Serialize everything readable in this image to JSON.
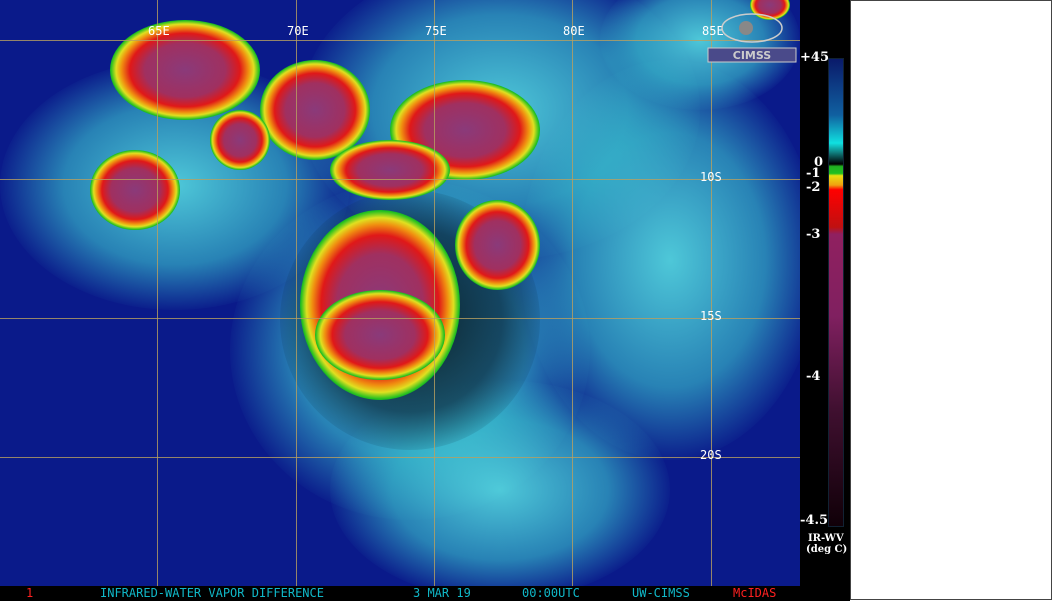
{
  "image": {
    "type": "satellite infrared-water vapor difference imagery",
    "subject": "tropical cyclone, South Indian Ocean"
  },
  "grid": {
    "longitude_labels": [
      "65E",
      "70E",
      "75E",
      "80E",
      "85E"
    ],
    "latitude_labels": [
      "10S",
      "15S",
      "20S"
    ]
  },
  "logo": {
    "text": "CIMSS"
  },
  "colorbar": {
    "labels": [
      "+45",
      "0",
      "-1",
      "-2",
      "-3",
      "-4",
      "-4.5"
    ],
    "unit_label_1": "IR-WV",
    "unit_label_2": "(deg C)"
  },
  "footer": {
    "frame": "1",
    "product": "INFRARED-WATER VAPOR DIFFERENCE",
    "date": "3 MAR 19",
    "time": "00:00UTC",
    "source": "UW-CIMSS",
    "software": "McIDAS"
  },
  "colors": {
    "ocean": "#0a1a8a",
    "footer_text": "#10b8c8",
    "mcidas": "#ff2020"
  }
}
